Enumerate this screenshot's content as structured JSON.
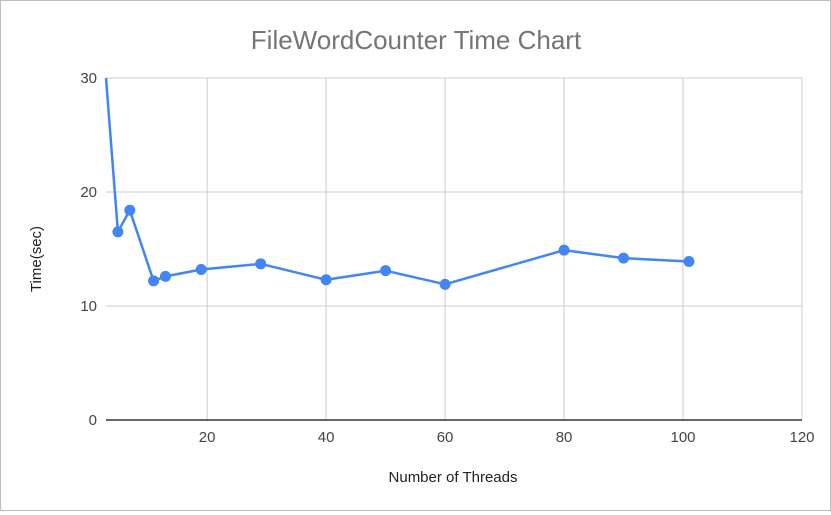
{
  "chart_data": {
    "type": "line",
    "title": "FileWordCounter Time Chart",
    "xlabel": "Number of Threads",
    "ylabel": "Time(sec)",
    "xlim": [
      3,
      120
    ],
    "ylim": [
      0,
      30
    ],
    "x_ticks": [
      20,
      40,
      60,
      80,
      100,
      120
    ],
    "y_ticks": [
      0,
      10,
      20,
      30
    ],
    "grid": true,
    "legend": "none",
    "series": [
      {
        "x": [
          3,
          5,
          7,
          11,
          13,
          19,
          29,
          40,
          50,
          60,
          80,
          90,
          101
        ],
        "values": [
          30,
          16.5,
          18.4,
          12.2,
          12.6,
          13.2,
          13.7,
          12.3,
          13.1,
          11.9,
          14.9,
          14.2,
          13.9
        ],
        "markers": [
          false,
          true,
          true,
          true,
          true,
          true,
          true,
          true,
          true,
          true,
          true,
          true,
          true
        ],
        "color": "#4285f4"
      }
    ]
  }
}
